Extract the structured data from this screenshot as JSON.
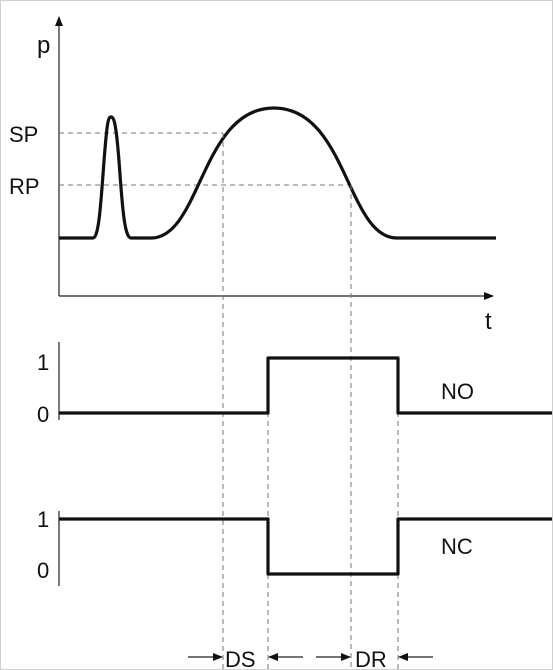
{
  "pressure_plot": {
    "y_axis_label": "p",
    "x_axis_label": "t",
    "levels": [
      {
        "label": "SP"
      },
      {
        "label": "RP"
      }
    ]
  },
  "signals": [
    {
      "name": "NO",
      "high_label": "1",
      "low_label": "0"
    },
    {
      "name": "NC",
      "high_label": "1",
      "low_label": "0"
    }
  ],
  "delays": [
    {
      "label": "DS"
    },
    {
      "label": "DR"
    }
  ]
}
